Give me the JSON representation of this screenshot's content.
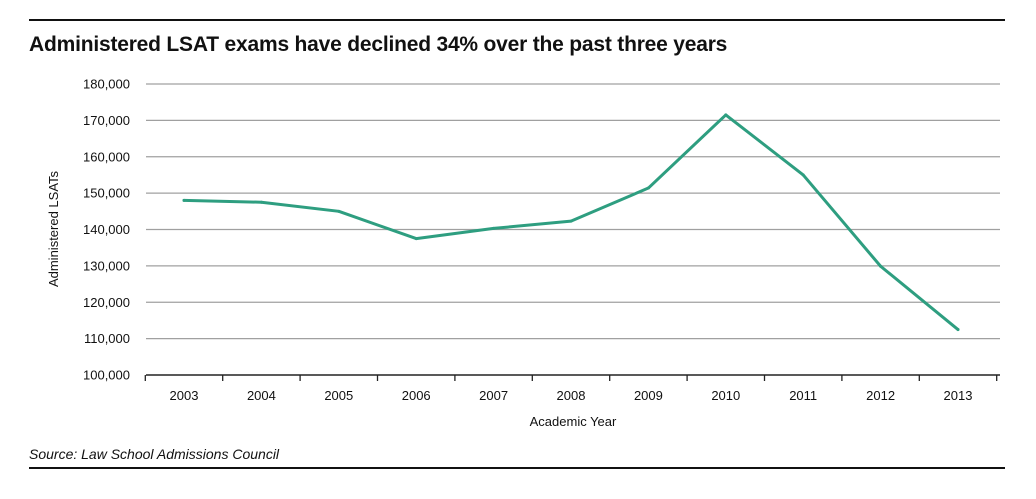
{
  "header": {
    "title": "Administered LSAT exams have declined 34% over the past three years"
  },
  "footer": {
    "source": "Source: Law School Admissions Council"
  },
  "colors": {
    "line": "#2e9e80",
    "grid": "#a0a0a0",
    "axis": "#222222"
  },
  "chart_data": {
    "type": "line",
    "title": "Administered LSAT exams have declined 34% over the past three years",
    "xlabel": "Academic Year",
    "ylabel": "Administered LSATs",
    "categories": [
      "2003",
      "2004",
      "2005",
      "2006",
      "2007",
      "2008",
      "2009",
      "2010",
      "2011",
      "2012",
      "2013"
    ],
    "series": [
      {
        "values": [
          148000,
          147500,
          145000,
          137500,
          140300,
          142300,
          151400,
          171500,
          155000,
          129900,
          112500
        ]
      }
    ],
    "ylim": [
      100000,
      180000
    ],
    "yticks": [
      100000,
      110000,
      120000,
      130000,
      140000,
      150000,
      160000,
      170000,
      180000
    ],
    "ytick_labels": [
      "100,000",
      "110,000",
      "120,000",
      "130,000",
      "140,000",
      "150,000",
      "160,000",
      "170,000",
      "180,000"
    ],
    "grid": true,
    "legend": "none"
  }
}
